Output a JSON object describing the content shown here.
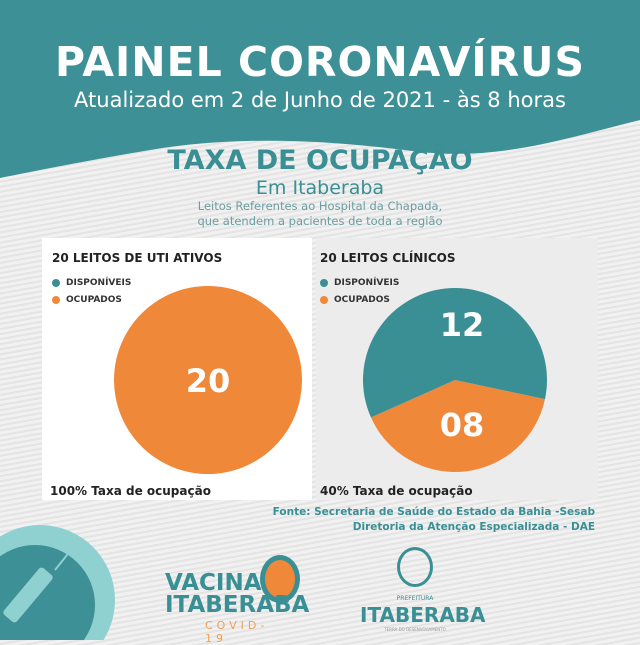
{
  "header": {
    "title": "PAINEL CORONAVÍRUS",
    "subtitle": "Atualizado em 2 de Junho de 2021 - às 8 horas"
  },
  "section": {
    "title": "TAXA DE OCUPAÇÃO",
    "location": "Em Itaberaba",
    "note_line1": "Leitos Referentes ao Hospital da Chapada,",
    "note_line2": "que atendem a pacientes de toda a região"
  },
  "colors": {
    "teal": "#3a8f94",
    "orange": "#f0883a",
    "header_teal": "#3d9096"
  },
  "chart_data": [
    {
      "type": "pie",
      "title": "20 LEITOS DE UTI ATIVOS",
      "categories": [
        "DISPONÍVEIS",
        "OCUPADOS"
      ],
      "values": [
        0,
        20
      ],
      "data_labels": [
        "",
        "20"
      ],
      "colors": [
        "#3a8f94",
        "#f0883a"
      ],
      "footer": "100% Taxa de ocupação",
      "legend": "top-left"
    },
    {
      "type": "pie",
      "title": "20 LEITOS CLÍNICOS",
      "categories": [
        "DISPONÍVEIS",
        "OCUPADOS"
      ],
      "values": [
        12,
        8
      ],
      "data_labels": [
        "12",
        "08"
      ],
      "colors": [
        "#3a8f94",
        "#f0883a"
      ],
      "footer": "40% Taxa de ocupação",
      "legend": "top-left"
    }
  ],
  "source": {
    "line1": "Fonte: Secretaria de Saúde do Estado da Bahia -Sesab",
    "line2": "Diretoria da Atenção Especializada - DAE"
  },
  "logos": {
    "vacina_line1": "VACINA",
    "vacina_line2": "ITABERABA",
    "vacina_line3": "COVID-19",
    "prefeitura_small": "PREFEITURA",
    "prefeitura_name": "ITABERABA",
    "prefeitura_tagline": "TERRA DO DESENVOLVIMENTO"
  }
}
